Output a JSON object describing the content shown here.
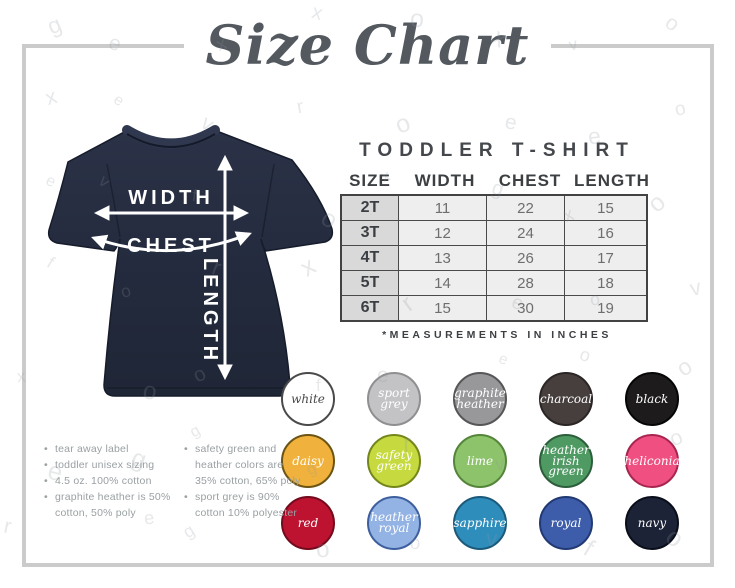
{
  "title": "Size Chart",
  "watermark": {
    "letters": [
      "g",
      "r",
      "o",
      "v",
      "e",
      "f",
      "x",
      "e",
      "o"
    ]
  },
  "diagram": {
    "width_label": "WIDTH",
    "chest_label": "CHEST",
    "length_label": "LENGTH",
    "shirt_color": "#242b3e"
  },
  "size_table": {
    "heading": "TODDLER T-SHIRT",
    "columns": [
      "SIZE",
      "WIDTH",
      "CHEST",
      "LENGTH"
    ],
    "rows": [
      {
        "size": "2T",
        "width": "11",
        "chest": "22",
        "length": "15"
      },
      {
        "size": "3T",
        "width": "12",
        "chest": "24",
        "length": "16"
      },
      {
        "size": "4T",
        "width": "13",
        "chest": "26",
        "length": "17"
      },
      {
        "size": "5T",
        "width": "14",
        "chest": "28",
        "length": "18"
      },
      {
        "size": "6T",
        "width": "15",
        "chest": "30",
        "length": "19"
      }
    ],
    "note": "*MEASUREMENTS IN INCHES"
  },
  "swatches": [
    {
      "name": "white",
      "label": "white",
      "bg": "#ffffff",
      "border": "#4a4a4a",
      "text_color": "#4a4a4a"
    },
    {
      "name": "sport-grey",
      "label": "sport\ngrey",
      "bg": "#c3c3c5",
      "border": "#8f8f91",
      "text_color": "#ffffff"
    },
    {
      "name": "graphite-heather",
      "label": "graphite\nheather",
      "bg": "#98989b",
      "border": "#565658",
      "text_color": "#ffffff"
    },
    {
      "name": "charcoal",
      "label": "charcoal",
      "bg": "#463f3e",
      "border": "#2b2625",
      "text_color": "#ffffff"
    },
    {
      "name": "black",
      "label": "black",
      "bg": "#1d1b1c",
      "border": "#060606",
      "text_color": "#ffffff"
    },
    {
      "name": "daisy",
      "label": "daisy",
      "bg": "#f0b23c",
      "border": "#6b5414",
      "text_color": "#ffffff"
    },
    {
      "name": "safety-green",
      "label": "safety\ngreen",
      "bg": "#c6da40",
      "border": "#73861a",
      "text_color": "#ffffff"
    },
    {
      "name": "lime",
      "label": "lime",
      "bg": "#8dc36b",
      "border": "#54853a",
      "text_color": "#ffffff"
    },
    {
      "name": "heather-irish-green",
      "label": "heather\nirish\ngreen",
      "bg": "#4f9a63",
      "border": "#2c5e3b",
      "text_color": "#ffffff"
    },
    {
      "name": "heliconia",
      "label": "heliconia",
      "bg": "#f04f81",
      "border": "#a72650",
      "text_color": "#ffffff"
    },
    {
      "name": "red",
      "label": "red",
      "bg": "#bd1330",
      "border": "#740a1d",
      "text_color": "#ffffff"
    },
    {
      "name": "heather-royal",
      "label": "heather\nroyal",
      "bg": "#93b3e4",
      "border": "#3e5f9e",
      "text_color": "#ffffff"
    },
    {
      "name": "sapphire",
      "label": "sapphire",
      "bg": "#2f8dbb",
      "border": "#1b5a7b",
      "text_color": "#ffffff"
    },
    {
      "name": "royal",
      "label": "royal",
      "bg": "#3d5dab",
      "border": "#223a73",
      "text_color": "#ffffff"
    },
    {
      "name": "navy",
      "label": "navy",
      "bg": "#1c2337",
      "border": "#0a0e1a",
      "text_color": "#ffffff"
    }
  ],
  "notes": {
    "left": [
      "tear away label",
      "toddler unisex sizing",
      "4.5 oz. 100% cotton",
      "graphite heather is 50% cotton, 50% poly"
    ],
    "right": [
      "safety green and heather colors are 35% cotton, 65% poly",
      "sport grey is 90% cotton 10% polyester"
    ]
  }
}
